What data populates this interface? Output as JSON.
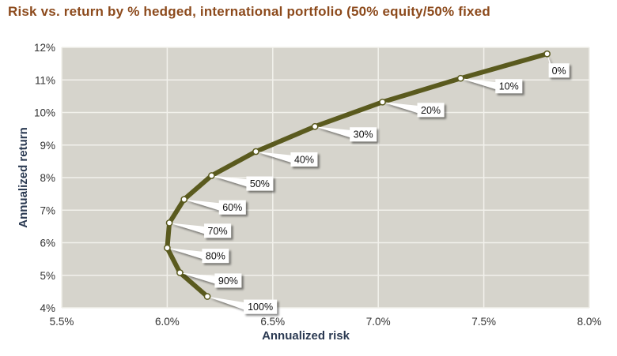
{
  "chart_data": {
    "type": "line",
    "title": "Risk vs. return by % hedged, international portfolio (50% equity/50% fixed",
    "xlabel": "Annualized risk",
    "ylabel": "Annualized return",
    "xlim": [
      5.5,
      8.0
    ],
    "ylim": [
      4,
      12
    ],
    "x_ticks": [
      "5.5%",
      "6.0%",
      "6.5%",
      "7.0%",
      "7.5%",
      "8.0%"
    ],
    "y_ticks": [
      "4%",
      "5%",
      "6%",
      "7%",
      "8%",
      "9%",
      "10%",
      "11%",
      "12%"
    ],
    "grid": true,
    "series": [
      {
        "name": "% hedged",
        "color": "#5a5a1e",
        "points": [
          {
            "label": "0%",
            "x": 7.8,
            "y": 11.8
          },
          {
            "label": "10%",
            "x": 7.39,
            "y": 11.05
          },
          {
            "label": "20%",
            "x": 7.02,
            "y": 10.32
          },
          {
            "label": "30%",
            "x": 6.7,
            "y": 9.57
          },
          {
            "label": "40%",
            "x": 6.42,
            "y": 8.8
          },
          {
            "label": "50%",
            "x": 6.21,
            "y": 8.06
          },
          {
            "label": "60%",
            "x": 6.08,
            "y": 7.33
          },
          {
            "label": "70%",
            "x": 6.01,
            "y": 6.61
          },
          {
            "label": "80%",
            "x": 6.0,
            "y": 5.84
          },
          {
            "label": "90%",
            "x": 6.06,
            "y": 5.08
          },
          {
            "label": "100%",
            "x": 6.19,
            "y": 4.35
          }
        ]
      }
    ]
  },
  "colors": {
    "title": "#8c4a1c",
    "axis_title": "#2b3a52",
    "plot_bg": "#d6d4cc",
    "grid": "#f2f1ec",
    "line": "#5a5a1e",
    "marker_fill": "#ffffff"
  }
}
